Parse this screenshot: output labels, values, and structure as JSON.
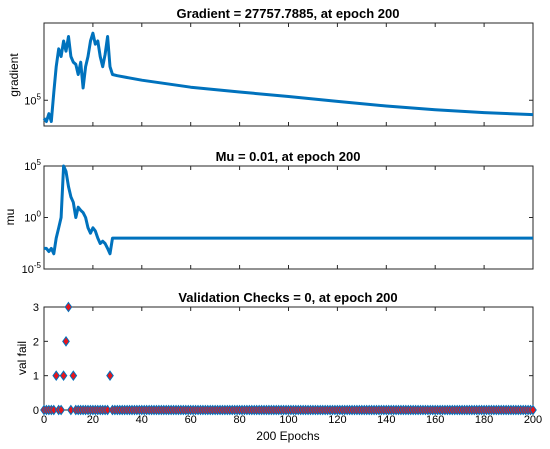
{
  "chart_data": [
    {
      "type": "line",
      "title": "Gradient = 27757.7885, at epoch 200",
      "ylabel": "gradient",
      "yscale": "log",
      "xlim": [
        0,
        200
      ],
      "ylim": [
        10000,
        100000000
      ],
      "ytick_labels": [
        {
          "value": 100000,
          "base": "10",
          "exp": "5"
        }
      ],
      "color": "#0072bd",
      "grid": false,
      "x": [
        0,
        1,
        2,
        3,
        4,
        5,
        6,
        7,
        8,
        9,
        10,
        11,
        12,
        13,
        14,
        15,
        16,
        17,
        18,
        19,
        20,
        21,
        22,
        23,
        24,
        25,
        26,
        27,
        28,
        30,
        40,
        60,
        80,
        100,
        120,
        140,
        160,
        180,
        200
      ],
      "y": [
        20000,
        15000,
        30000,
        15000,
        200000,
        2000000,
        10000000,
        5000000,
        20000000,
        8000000,
        30000000,
        5000000,
        3000000,
        2500000,
        1000000,
        3000000,
        300000,
        2000000,
        5000000,
        20000000,
        40000000,
        15000000,
        20000000,
        5000000,
        2000000,
        6000000,
        30000000,
        2000000,
        1000000,
        900000,
        600000,
        320000,
        210000,
        140000,
        90000,
        60000,
        43000,
        33000,
        27757.7885
      ]
    },
    {
      "type": "line",
      "title": "Mu = 0.01, at epoch 200",
      "ylabel": "mu",
      "yscale": "log",
      "xlim": [
        0,
        200
      ],
      "ylim": [
        1e-05,
        100000
      ],
      "ytick_labels": [
        {
          "value": 1e-05,
          "base": "10",
          "exp": "-5"
        },
        {
          "value": 1,
          "base": "10",
          "exp": "0"
        },
        {
          "value": 100000,
          "base": "10",
          "exp": "5"
        }
      ],
      "color": "#0072bd",
      "grid": false,
      "x": [
        0,
        1,
        2,
        3,
        4,
        5,
        6,
        7,
        8,
        9,
        10,
        11,
        12,
        13,
        14,
        15,
        16,
        17,
        18,
        19,
        20,
        21,
        22,
        23,
        24,
        25,
        26,
        27,
        28,
        200
      ],
      "y": [
        0.001,
        0.001,
        0.0005,
        0.001,
        0.0003,
        0.01,
        0.1,
        1,
        100000,
        30000,
        1000,
        100,
        30,
        1,
        10,
        5,
        3,
        1,
        0.1,
        0.03,
        0.1,
        0.05,
        0.01,
        0.003,
        0.005,
        0.003,
        0.001,
        0.0003,
        0.01,
        0.01
      ]
    },
    {
      "type": "scatter",
      "title": "Validation Checks = 0, at epoch 200",
      "ylabel": "val fail",
      "xlabel": "200 Epochs",
      "xlim": [
        0,
        200
      ],
      "ylim": [
        0,
        3
      ],
      "yticks": [
        0,
        1,
        2,
        3
      ],
      "xticks": [
        0,
        20,
        40,
        60,
        80,
        100,
        120,
        140,
        160,
        180,
        200
      ],
      "marker": "diamond",
      "marker_fill": "#e8141b",
      "marker_edge": "#0072bd",
      "grid": false,
      "x": [
        0,
        1,
        2,
        3,
        4,
        5,
        6,
        7,
        8,
        9,
        10,
        11,
        12,
        13,
        14,
        15,
        16,
        17,
        18,
        19,
        20,
        21,
        22,
        23,
        24,
        25,
        26,
        27,
        28,
        29,
        30,
        31,
        32,
        33,
        34,
        35,
        36,
        37,
        38,
        39,
        40,
        41,
        42,
        43,
        44,
        45,
        46,
        47,
        48,
        49,
        50,
        51,
        52,
        53,
        54,
        55,
        56,
        57,
        58,
        59,
        60,
        61,
        62,
        63,
        64,
        65,
        66,
        67,
        68,
        69,
        70,
        71,
        72,
        73,
        74,
        75,
        76,
        77,
        78,
        79,
        80,
        81,
        82,
        83,
        84,
        85,
        86,
        87,
        88,
        89,
        90,
        91,
        92,
        93,
        94,
        95,
        96,
        97,
        98,
        99,
        100,
        101,
        102,
        103,
        104,
        105,
        106,
        107,
        108,
        109,
        110,
        111,
        112,
        113,
        114,
        115,
        116,
        117,
        118,
        119,
        120,
        121,
        122,
        123,
        124,
        125,
        126,
        127,
        128,
        129,
        130,
        131,
        132,
        133,
        134,
        135,
        136,
        137,
        138,
        139,
        140,
        141,
        142,
        143,
        144,
        145,
        146,
        147,
        148,
        149,
        150,
        151,
        152,
        153,
        154,
        155,
        156,
        157,
        158,
        159,
        160,
        161,
        162,
        163,
        164,
        165,
        166,
        167,
        168,
        169,
        170,
        171,
        172,
        173,
        174,
        175,
        176,
        177,
        178,
        179,
        180,
        181,
        182,
        183,
        184,
        185,
        186,
        187,
        188,
        189,
        190,
        191,
        192,
        193,
        194,
        195,
        196,
        197,
        198,
        199,
        200
      ],
      "y": [
        0,
        0,
        0,
        0,
        0,
        1,
        0,
        0,
        1,
        2,
        3,
        0,
        1,
        0,
        0,
        0,
        0,
        0,
        0,
        0,
        0,
        0,
        0,
        0,
        0,
        0,
        0,
        1,
        0,
        0,
        0,
        0,
        0,
        0,
        0,
        0,
        0,
        0,
        0,
        0,
        0,
        0,
        0,
        0,
        0,
        0,
        0,
        0,
        0,
        0,
        0,
        0,
        0,
        0,
        0,
        0,
        0,
        0,
        0,
        0,
        0,
        0,
        0,
        0,
        0,
        0,
        0,
        0,
        0,
        0,
        0,
        0,
        0,
        0,
        0,
        0,
        0,
        0,
        0,
        0,
        0,
        0,
        0,
        0,
        0,
        0,
        0,
        0,
        0,
        0,
        0,
        0,
        0,
        0,
        0,
        0,
        0,
        0,
        0,
        0,
        0,
        0,
        0,
        0,
        0,
        0,
        0,
        0,
        0,
        0,
        0,
        0,
        0,
        0,
        0,
        0,
        0,
        0,
        0,
        0,
        0,
        0,
        0,
        0,
        0,
        0,
        0,
        0,
        0,
        0,
        0,
        0,
        0,
        0,
        0,
        0,
        0,
        0,
        0,
        0,
        0,
        0,
        0,
        0,
        0,
        0,
        0,
        0,
        0,
        0,
        0,
        0,
        0,
        0,
        0,
        0,
        0,
        0,
        0,
        0,
        0,
        0,
        0,
        0,
        0,
        0,
        0,
        0,
        0,
        0,
        0,
        0,
        0,
        0,
        0,
        0,
        0,
        0,
        0,
        0,
        0,
        0,
        0,
        0,
        0,
        0,
        0,
        0,
        0,
        0,
        0,
        0,
        0,
        0,
        0,
        0,
        0,
        0,
        0,
        0,
        0
      ]
    }
  ]
}
